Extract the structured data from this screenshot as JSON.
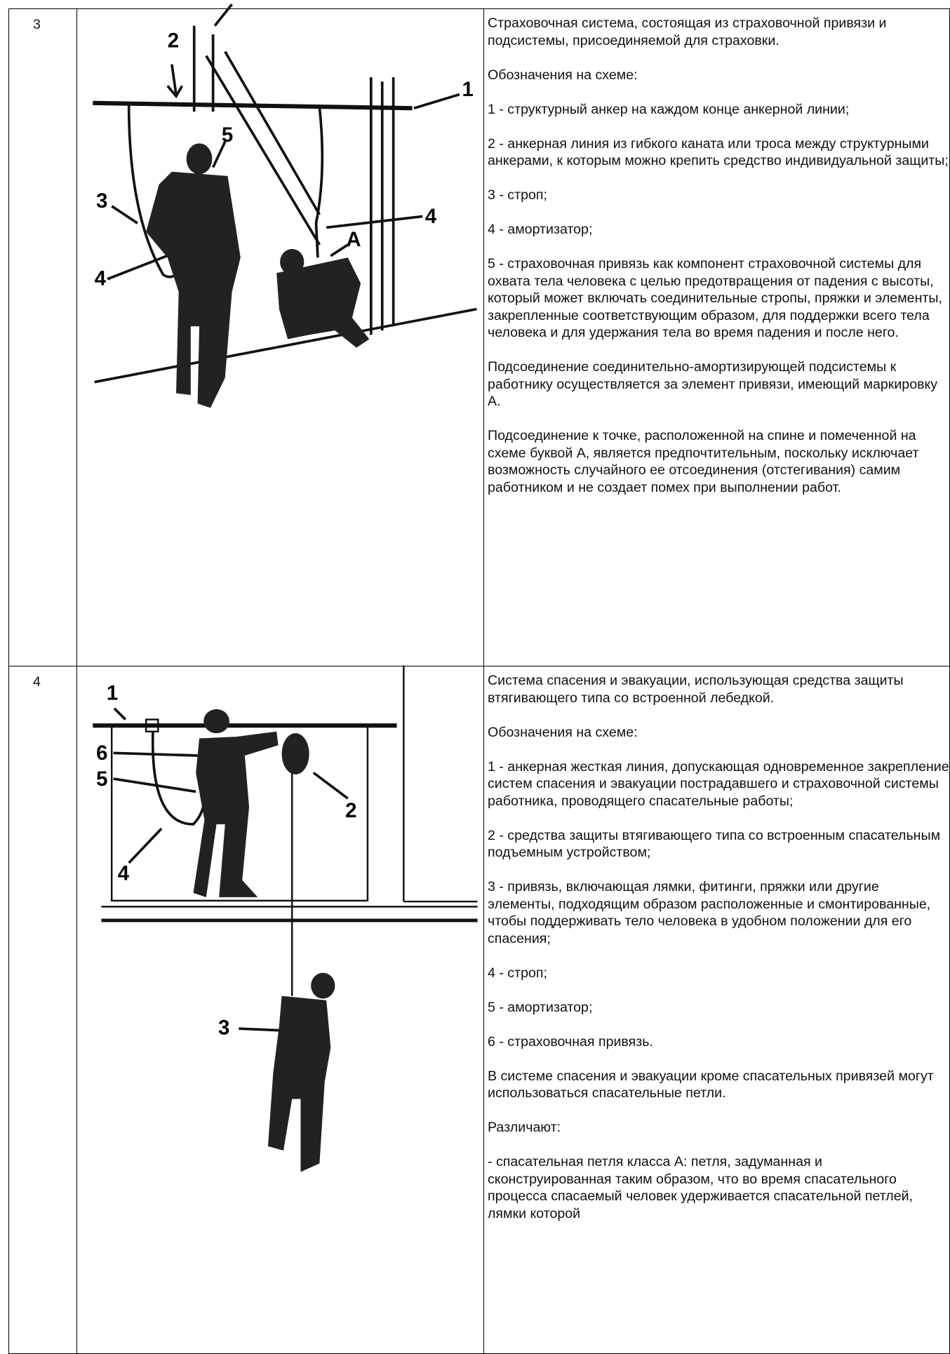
{
  "table": {
    "rows": [
      {
        "number": "3",
        "figure_labels": [
          "2",
          "1",
          "5",
          "3",
          "4",
          "A",
          "4"
        ],
        "paragraphs": [
          "Страховочная система, состоящая из страховочной привязи и подсистемы, присоединяемой для страховки.",
          "Обозначения на схеме:",
          "1 - структурный анкер на каждом конце анкерной линии;",
          "2 - анкерная линия из гибкого каната или троса между структурными анкерами, к которым можно крепить средство индивидуальной защиты;",
          "3 - строп;",
          "4 - амортизатор;",
          "5 - страховочная привязь как компонент страховочной системы для охвата тела человека с целью предотвращения от падения с высоты, который может включать соединительные стропы, пряжки и элементы, закрепленные соответствующим образом, для поддержки всего тела человека и для удержания тела во время падения и после него.",
          "Подсоединение соединительно-амортизирующей подсистемы к работнику осуществляется за элемент привязи, имеющий маркировку А.",
          "Подсоединение к точке, расположенной на спине и помеченной на схеме буквой А, является предпочтительным, поскольку исключает возможность случайного ее отсоединения (отстегивания) самим работником и не создает помех при выполнении работ."
        ]
      },
      {
        "number": "4",
        "figure_labels": [
          "1",
          "6",
          "5",
          "2",
          "4",
          "3"
        ],
        "paragraphs": [
          "Система спасения и эвакуации, использующая средства защиты втягивающего типа со встроенной лебедкой.",
          "Обозначения на схеме:",
          "1 - анкерная жесткая линия, допускающая одновременное закрепление систем спасения и эвакуации пострадавшего и страховочной системы работника, проводящего спасательные работы;",
          "2 - средства защиты втягивающего типа со встроенным спасательным подъемным устройством;",
          "3 - привязь, включающая лямки, фитинги, пряжки или другие элементы, подходящим образом расположенные и смонтированные, чтобы поддерживать тело человека в удобном положении для его спасения;",
          "4 - строп;",
          "5 - амортизатор;",
          "6 - страховочная привязь.",
          "В системе спасения и эвакуации кроме спасательных привязей могут использоваться спасательные петли.",
          "Различают:",
          "- спасательная петля класса А: петля, задуманная и сконструированная таким образом, что во время спасательного процесса спасаемый человек удерживается спасательной петлей, лямки которой"
        ]
      }
    ]
  }
}
